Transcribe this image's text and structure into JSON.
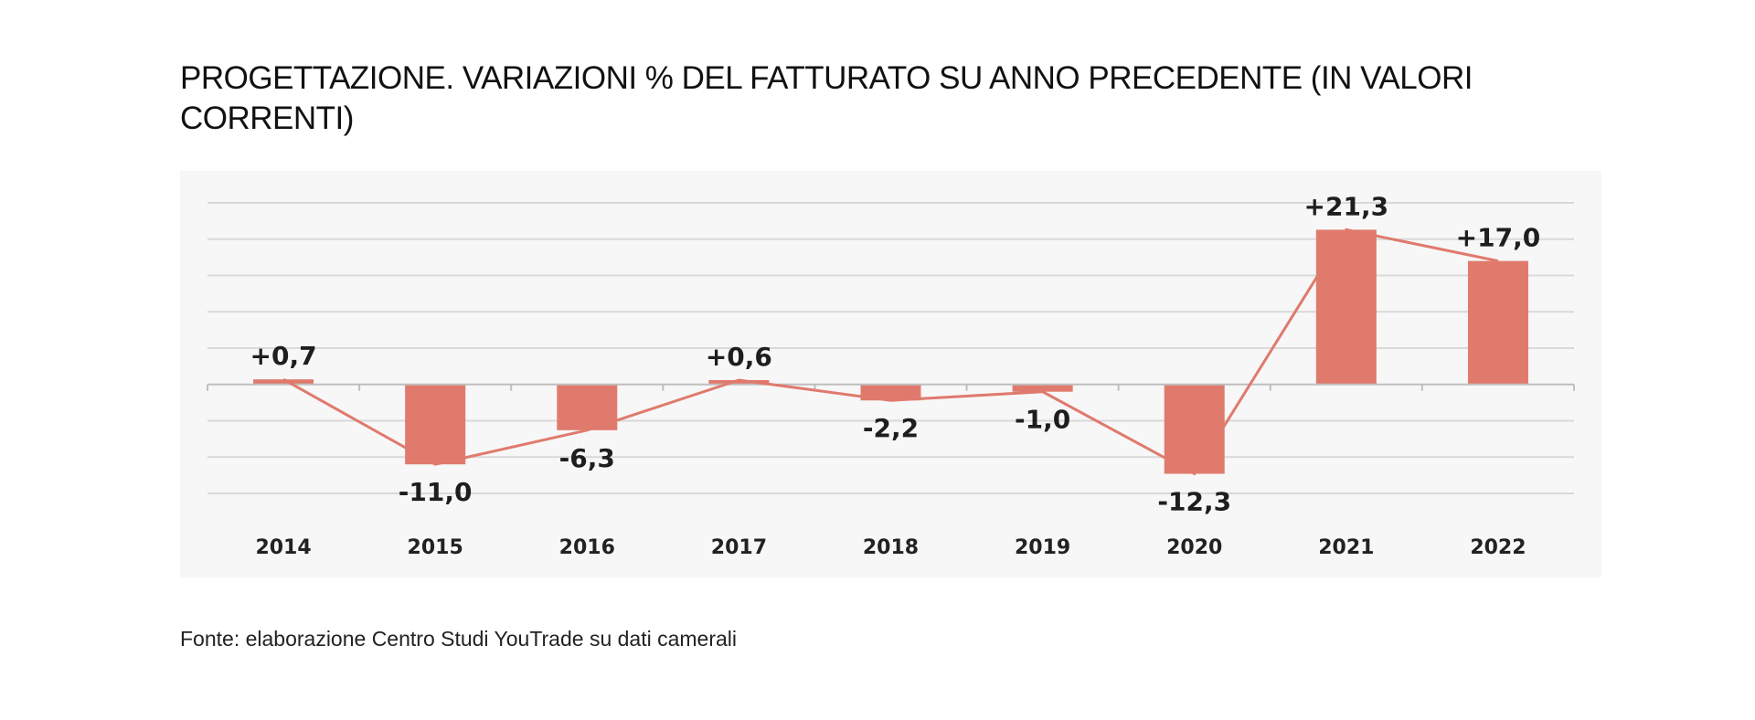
{
  "title": "PROGETTAZIONE. VARIAZIONI % DEL FATTURATO SU ANNO PRECEDENTE (IN VALORI CORRENTI)",
  "source": "Fonte: elaborazione Centro Studi YouTrade su dati camerali",
  "colors": {
    "bar": "#e07a6d",
    "line": "#e07a6d",
    "grid": "#d9d9d9",
    "axis": "#bfbfbf",
    "background": "#f7f7f7"
  },
  "chart_data": {
    "type": "bar",
    "categories": [
      "2014",
      "2015",
      "2016",
      "2017",
      "2018",
      "2019",
      "2020",
      "2021",
      "2022"
    ],
    "values": [
      0.7,
      -11.0,
      -6.3,
      0.6,
      -2.2,
      -1.0,
      -12.3,
      21.3,
      17.0
    ],
    "data_labels": [
      "+0,7",
      "-11,0",
      "-6,3",
      "+0,6",
      "-2,2",
      "-1,0",
      "-12,3",
      "+21,3",
      "+17,0"
    ],
    "overlay_line": true,
    "ylim": [
      -15,
      25
    ],
    "gridlines": [
      -15,
      -10,
      -5,
      5,
      10,
      15,
      20,
      25
    ],
    "grid": true,
    "y_axis_labels_shown": false,
    "legend": "none"
  }
}
